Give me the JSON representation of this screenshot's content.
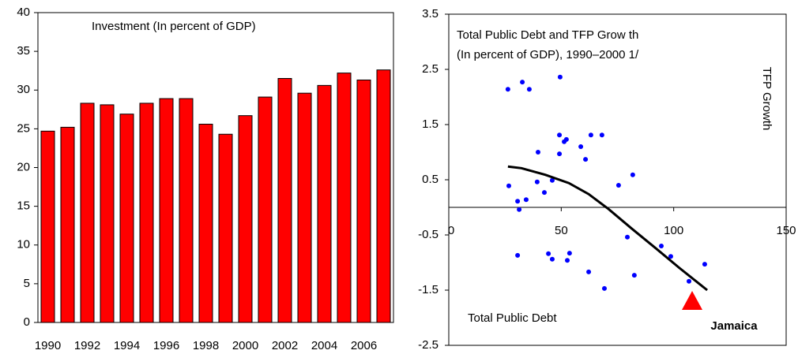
{
  "chart_data": [
    {
      "type": "bar",
      "title": "Investment (In percent of GDP)",
      "categories": [
        "1990",
        null,
        "1992",
        null,
        "1994",
        null,
        "1996",
        null,
        "1998",
        null,
        "2000",
        null,
        "2002",
        null,
        "2004",
        null,
        "2006",
        null
      ],
      "values": [
        24.7,
        25.2,
        28.3,
        28.1,
        26.9,
        28.3,
        28.9,
        28.9,
        25.6,
        24.3,
        26.7,
        29.1,
        31.5,
        29.6,
        30.6,
        32.2,
        31.3,
        32.6
      ],
      "color": "#ff0000",
      "ylim": [
        0,
        40
      ],
      "yticks": [
        0,
        5,
        10,
        15,
        20,
        25,
        30,
        35,
        40
      ],
      "grid": false
    },
    {
      "type": "scatter",
      "title": "Total Public Debt and TFP Grow th",
      "subtitle": "(In percent of GDP), 1990–2000 1/",
      "xlabel": "Total Public Debt",
      "ylabel": "TFP Growth",
      "xlim": [
        0,
        150
      ],
      "xticks": [
        0,
        50,
        100,
        150
      ],
      "ylim": [
        -2.5,
        3.5
      ],
      "yticks": [
        -2.5,
        -1.5,
        -0.5,
        0.5,
        1.5,
        2.5,
        3.5
      ],
      "grid": false,
      "series": [
        {
          "type": "scatter",
          "color": "#0000ff",
          "x": [
            26.3,
            32.7,
            35.8,
            49.5,
            49.2,
            51.3,
            52.3,
            49.2,
            39.7,
            58.7,
            63.2,
            68.1,
            60.8,
            81.8,
            75.5,
            26.7,
            39.3,
            46,
            42.5,
            34.4,
            30.6,
            31.3,
            79.4,
            94.5,
            98.7,
            113.8,
            30.6,
            44.3,
            46,
            52.7,
            53.7,
            62.2,
            82.5,
            69.2,
            106.8
          ],
          "values": [
            2.14,
            2.27,
            2.14,
            2.36,
            1.31,
            1.19,
            1.23,
            0.97,
            1.0,
            1.1,
            1.31,
            1.31,
            0.87,
            0.59,
            0.4,
            0.39,
            0.46,
            0.49,
            0.27,
            0.14,
            0.11,
            -0.04,
            -0.54,
            -0.7,
            -0.89,
            -1.03,
            -0.87,
            -0.84,
            -0.94,
            -0.96,
            -0.83,
            -1.17,
            -1.23,
            -1.47,
            -1.34
          ]
        },
        {
          "type": "line",
          "color": "#000000",
          "x": [
            26.3,
            32.3,
            42.9,
            53.4,
            62.2,
            71,
            81.5,
            92,
            102.6,
            114.9
          ],
          "values": [
            0.74,
            0.71,
            0.59,
            0.44,
            0.24,
            -0.03,
            -0.39,
            -0.74,
            -1.1,
            -1.5
          ]
        },
        {
          "type": "triangle",
          "name": "Jamaica",
          "color": "#ff0000",
          "x": [
            108.2
          ],
          "values": [
            -1.7
          ]
        }
      ]
    }
  ]
}
